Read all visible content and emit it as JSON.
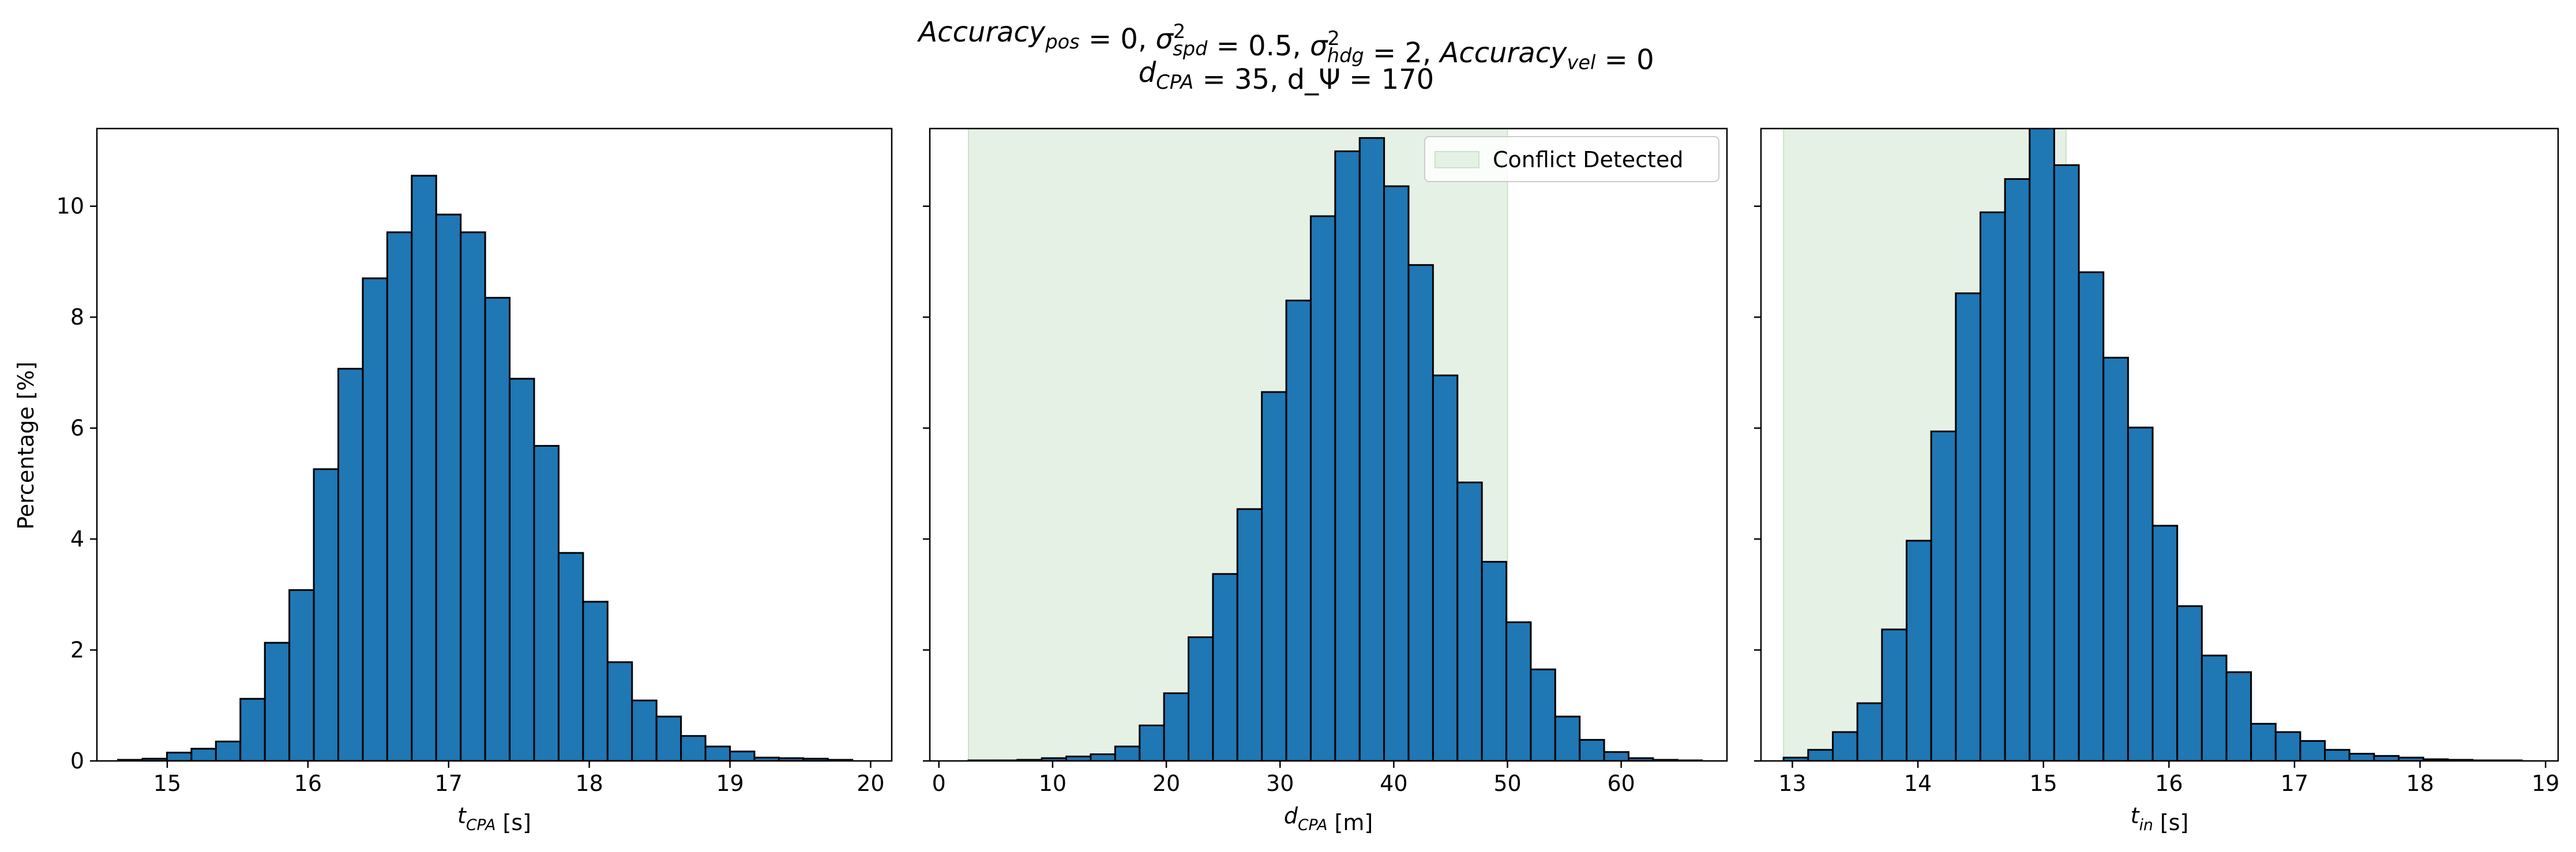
{
  "title_line1": "Accuracy_pos = 0, σ²_spd = 0.5, σ²_hdg = 2, Accuracy_vel = 0",
  "title_line2": "d_CPA = 35, d_Ψ = 170",
  "colors": {
    "bar": "#1f77b4",
    "edge": "#000000",
    "conflict": "#e5f1e5"
  },
  "chart_data": [
    {
      "type": "bar",
      "subtype": "histogram",
      "ylabel": "Percentage [%]",
      "xlabel": "t_CPA [s]",
      "xlim": [
        14.5,
        20.15
      ],
      "ylim": [
        0,
        11.4
      ],
      "xticks": [
        15,
        16,
        17,
        18,
        19,
        20
      ],
      "yticks": [
        0,
        2,
        4,
        6,
        8,
        10
      ],
      "bin_start": 14.65,
      "bin_width": 0.174,
      "values": [
        0.02,
        0.04,
        0.15,
        0.22,
        0.35,
        1.12,
        2.13,
        3.08,
        5.26,
        7.07,
        8.7,
        9.53,
        10.55,
        9.85,
        9.53,
        8.35,
        6.89,
        5.68,
        3.75,
        2.87,
        1.78,
        1.09,
        0.8,
        0.45,
        0.26,
        0.17,
        0.06,
        0.05,
        0.04,
        0.02
      ]
    },
    {
      "type": "bar",
      "subtype": "histogram",
      "xlabel": "d_CPA [m]",
      "xlim": [
        -0.8,
        69.3
      ],
      "ylim": [
        0,
        11.4
      ],
      "xticks": [
        0,
        10,
        20,
        30,
        40,
        50,
        60
      ],
      "yticks": [
        0,
        2,
        4,
        6,
        8,
        10
      ],
      "shaded_region": [
        2.6,
        50
      ],
      "legend": "Conflict Detected",
      "legend_loc": "upper right",
      "bin_start": 2.6,
      "bin_width": 2.15,
      "values": [
        0.01,
        0.01,
        0.02,
        0.05,
        0.08,
        0.12,
        0.26,
        0.64,
        1.22,
        2.23,
        3.37,
        4.54,
        6.65,
        8.3,
        9.82,
        10.99,
        11.23,
        10.36,
        8.94,
        6.95,
        5.02,
        3.59,
        2.5,
        1.65,
        0.8,
        0.38,
        0.16,
        0.05,
        0.02,
        0.01
      ]
    },
    {
      "type": "bar",
      "subtype": "histogram",
      "xlabel": "t_in [s]",
      "xlim": [
        12.75,
        19.1
      ],
      "ylim": [
        0,
        11.4
      ],
      "xticks": [
        13,
        14,
        15,
        16,
        17,
        18,
        19
      ],
      "yticks": [
        0,
        2,
        4,
        6,
        8,
        10
      ],
      "shaded_region": [
        12.93,
        15.18
      ],
      "bin_start": 12.93,
      "bin_width": 0.196,
      "values": [
        0.06,
        0.2,
        0.52,
        1.04,
        2.37,
        3.97,
        5.94,
        8.43,
        9.89,
        10.49,
        11.44,
        10.74,
        8.81,
        7.27,
        6.01,
        4.24,
        2.79,
        1.9,
        1.6,
        0.67,
        0.52,
        0.36,
        0.2,
        0.13,
        0.09,
        0.06,
        0.03,
        0.02,
        0.01,
        0.01
      ]
    }
  ]
}
